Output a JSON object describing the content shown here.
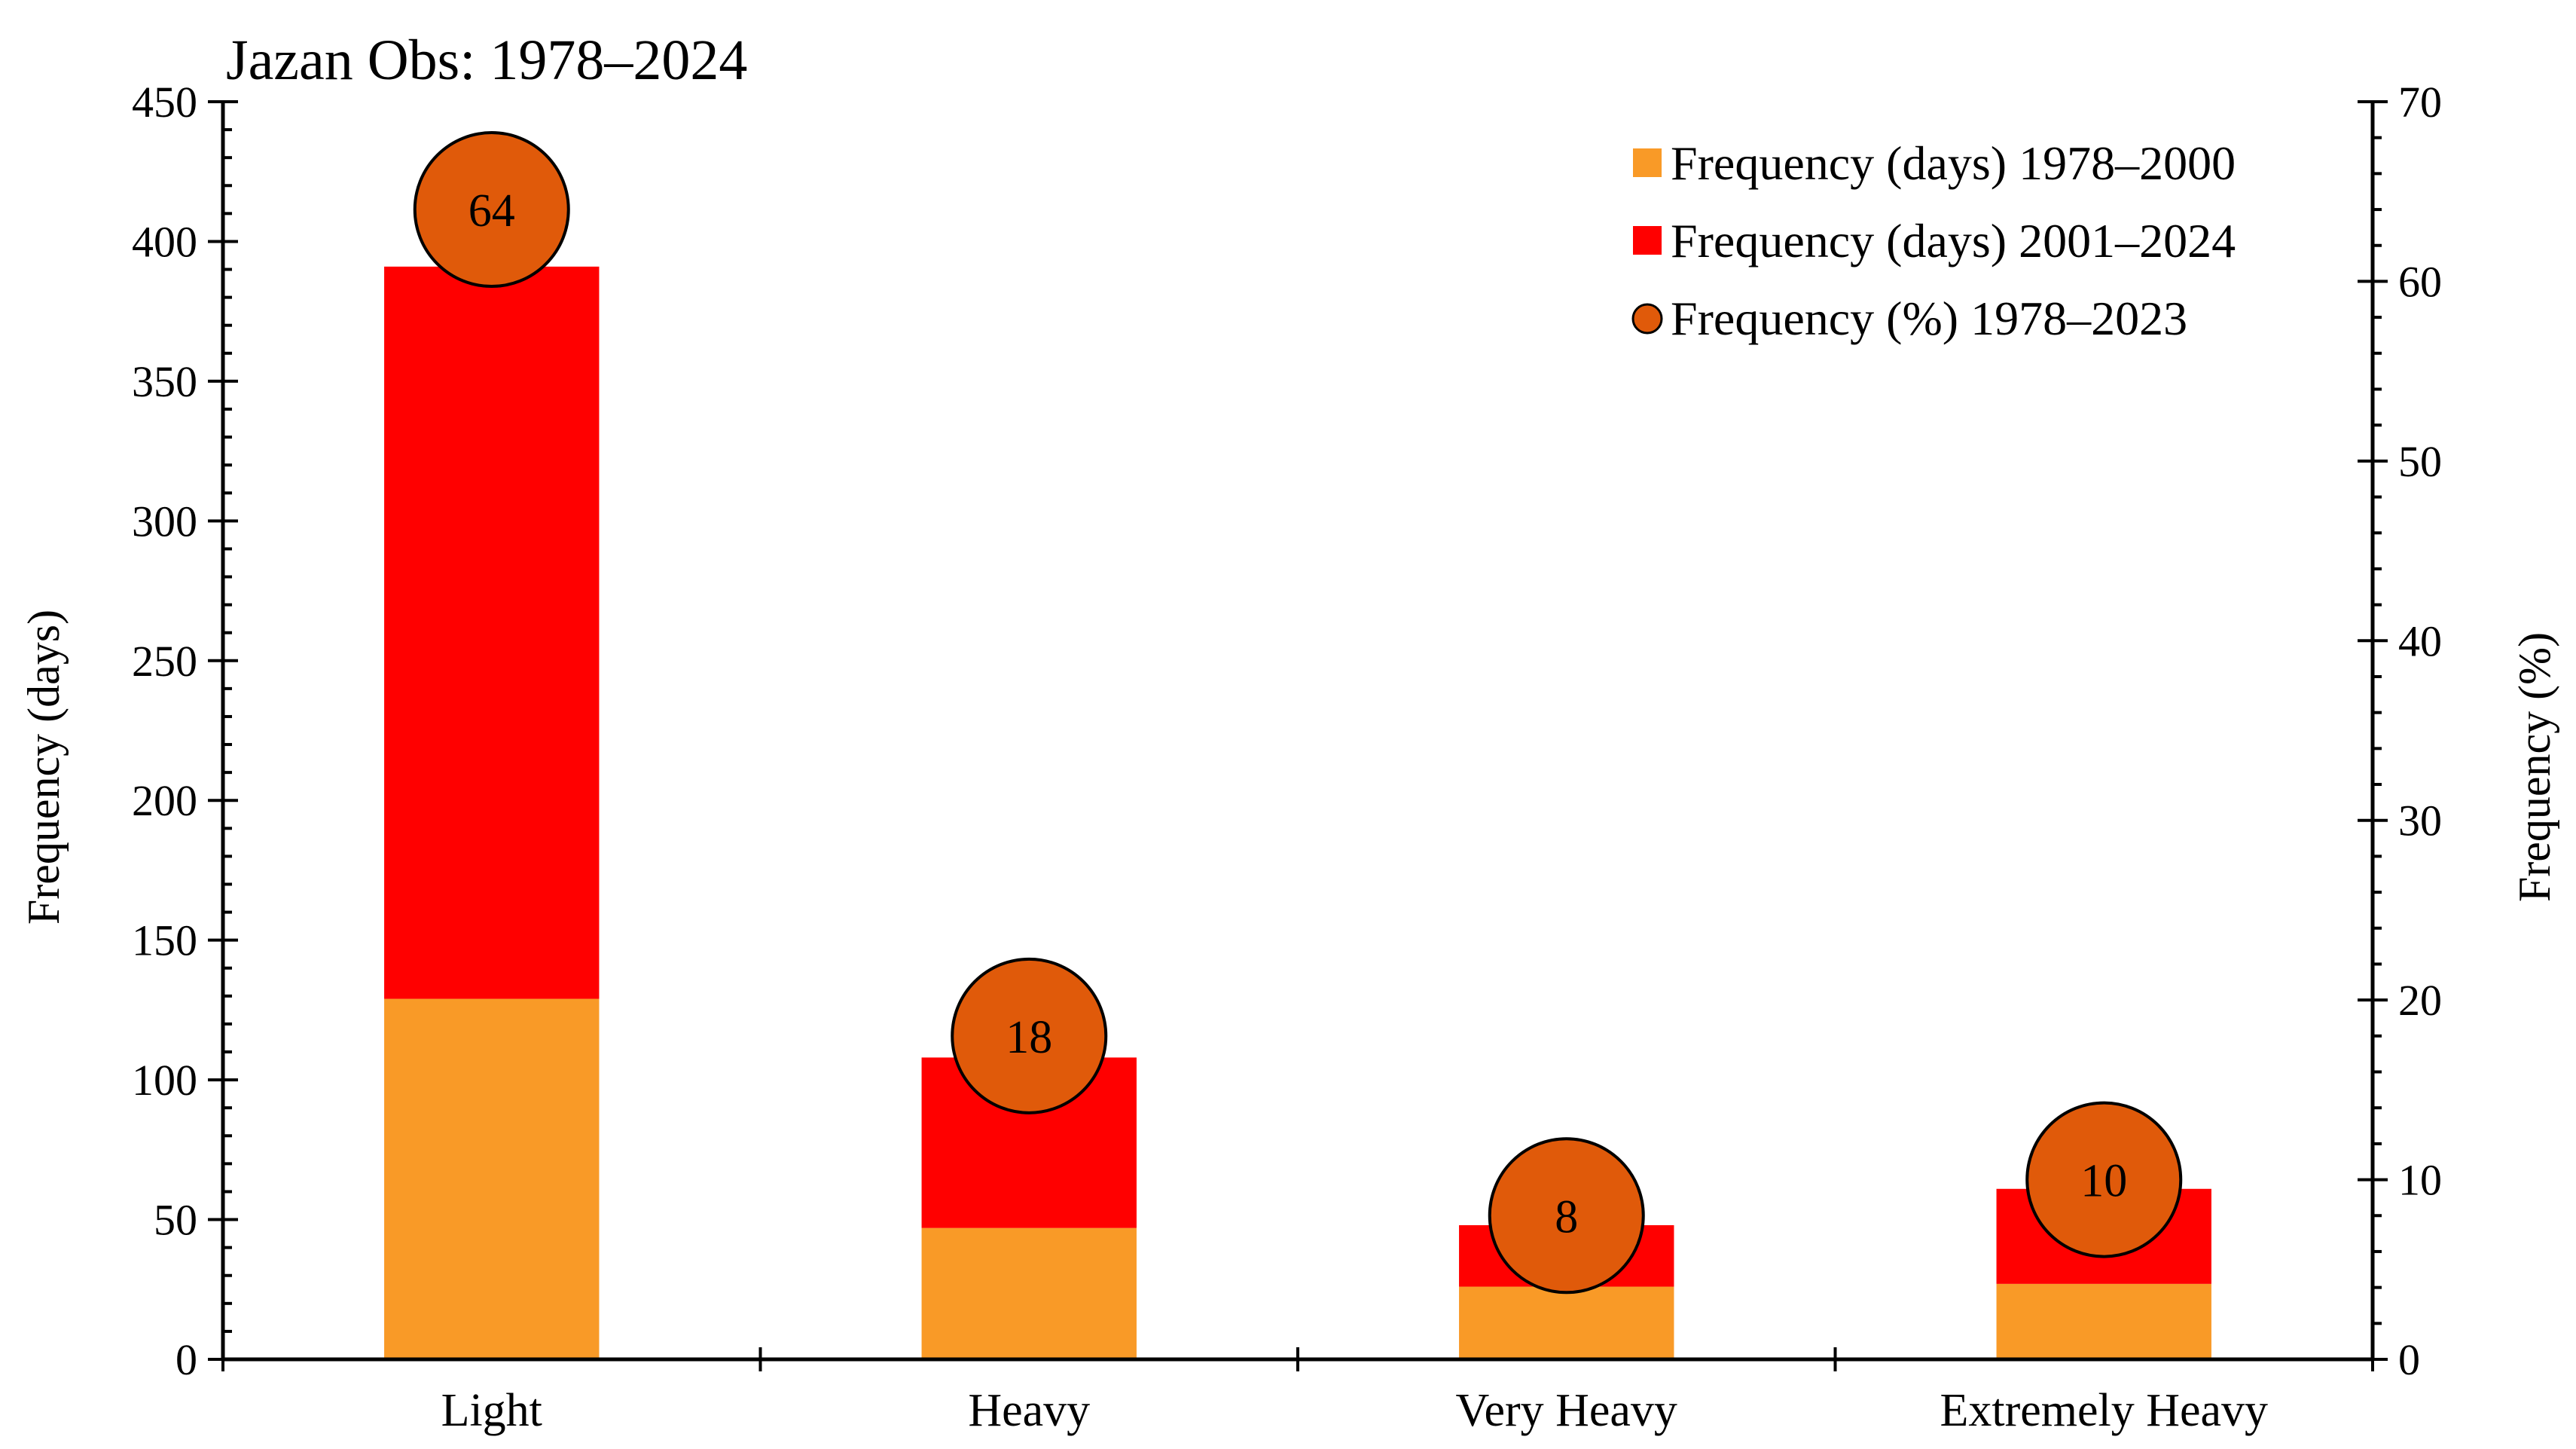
{
  "chart_data": {
    "type": "bar",
    "stacked": true,
    "title": "Jazan Obs: 1978–2024",
    "categories": [
      "Light",
      "Heavy",
      "Very Heavy",
      "Extremely Heavy"
    ],
    "series": [
      {
        "name": "Frequency (days) 1978–2000",
        "values": [
          129,
          47,
          26,
          27
        ],
        "color": "#F99A27",
        "axis": "left"
      },
      {
        "name": "Frequency (days) 2001–2024",
        "values": [
          262,
          61,
          22,
          34
        ],
        "color": "#FF0000",
        "axis": "left"
      },
      {
        "name": "Frequency (%) 1978–2023",
        "type": "scatter",
        "values": [
          64,
          18,
          8,
          10
        ],
        "labels": [
          "64",
          "18",
          "8",
          "10"
        ],
        "color": "#E05A0A",
        "axis": "right"
      }
    ],
    "ylabel": "Frequency (days)",
    "y2label": "Frequency (%)",
    "ylim": [
      0,
      450
    ],
    "y2lim": [
      0,
      70
    ],
    "yticks": [
      "0",
      "50",
      "100",
      "150",
      "200",
      "250",
      "300",
      "350",
      "400",
      "450"
    ],
    "y2ticks": [
      "0",
      "10",
      "20",
      "30",
      "40",
      "50",
      "60",
      "70"
    ],
    "grid": false,
    "legend_position": "top-right"
  }
}
